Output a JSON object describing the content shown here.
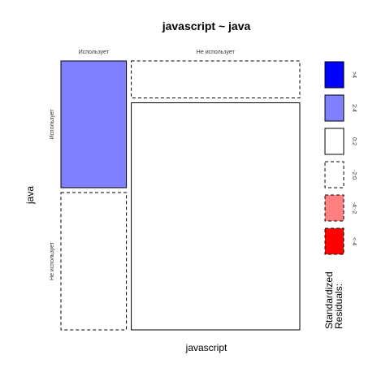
{
  "chart_data": {
    "type": "mosaic",
    "title": "javascript ~ java",
    "xlabel": "javascript",
    "ylabel": "java",
    "x_categories": [
      "Использует",
      "Не использует"
    ],
    "y_categories": [
      "Использует",
      "Не использует"
    ],
    "cells": [
      {
        "x": "Использует",
        "y": "Использует",
        "x_share": 0.28,
        "y_share": 0.48,
        "residual_class": "2:4"
      },
      {
        "x": "Использует",
        "y": "Не использует",
        "x_share": 0.28,
        "y_share": 0.52,
        "residual_class": "-2:0"
      },
      {
        "x": "Не использует",
        "y": "Использует",
        "x_share": 0.72,
        "y_share": 0.14,
        "residual_class": "-2:0"
      },
      {
        "x": "Не использует",
        "y": "Не использует",
        "x_share": 0.72,
        "y_share": 0.86,
        "residual_class": "0:2"
      }
    ],
    "legend": {
      "title_line1": "Standardized",
      "title_line2": "Residuals:",
      "items": [
        {
          "label": ">4",
          "fill": "#0000ff",
          "dashed": false
        },
        {
          "label": "2:4",
          "fill": "#8080ff",
          "dashed": false
        },
        {
          "label": "0:2",
          "fill": "#ffffff",
          "dashed": false
        },
        {
          "label": "-2:0",
          "fill": "#ffffff",
          "dashed": true
        },
        {
          "label": "-4:-2",
          "fill": "#ff8080",
          "dashed": true
        },
        {
          "label": "<-4",
          "fill": "#ff0000",
          "dashed": true
        }
      ]
    }
  }
}
